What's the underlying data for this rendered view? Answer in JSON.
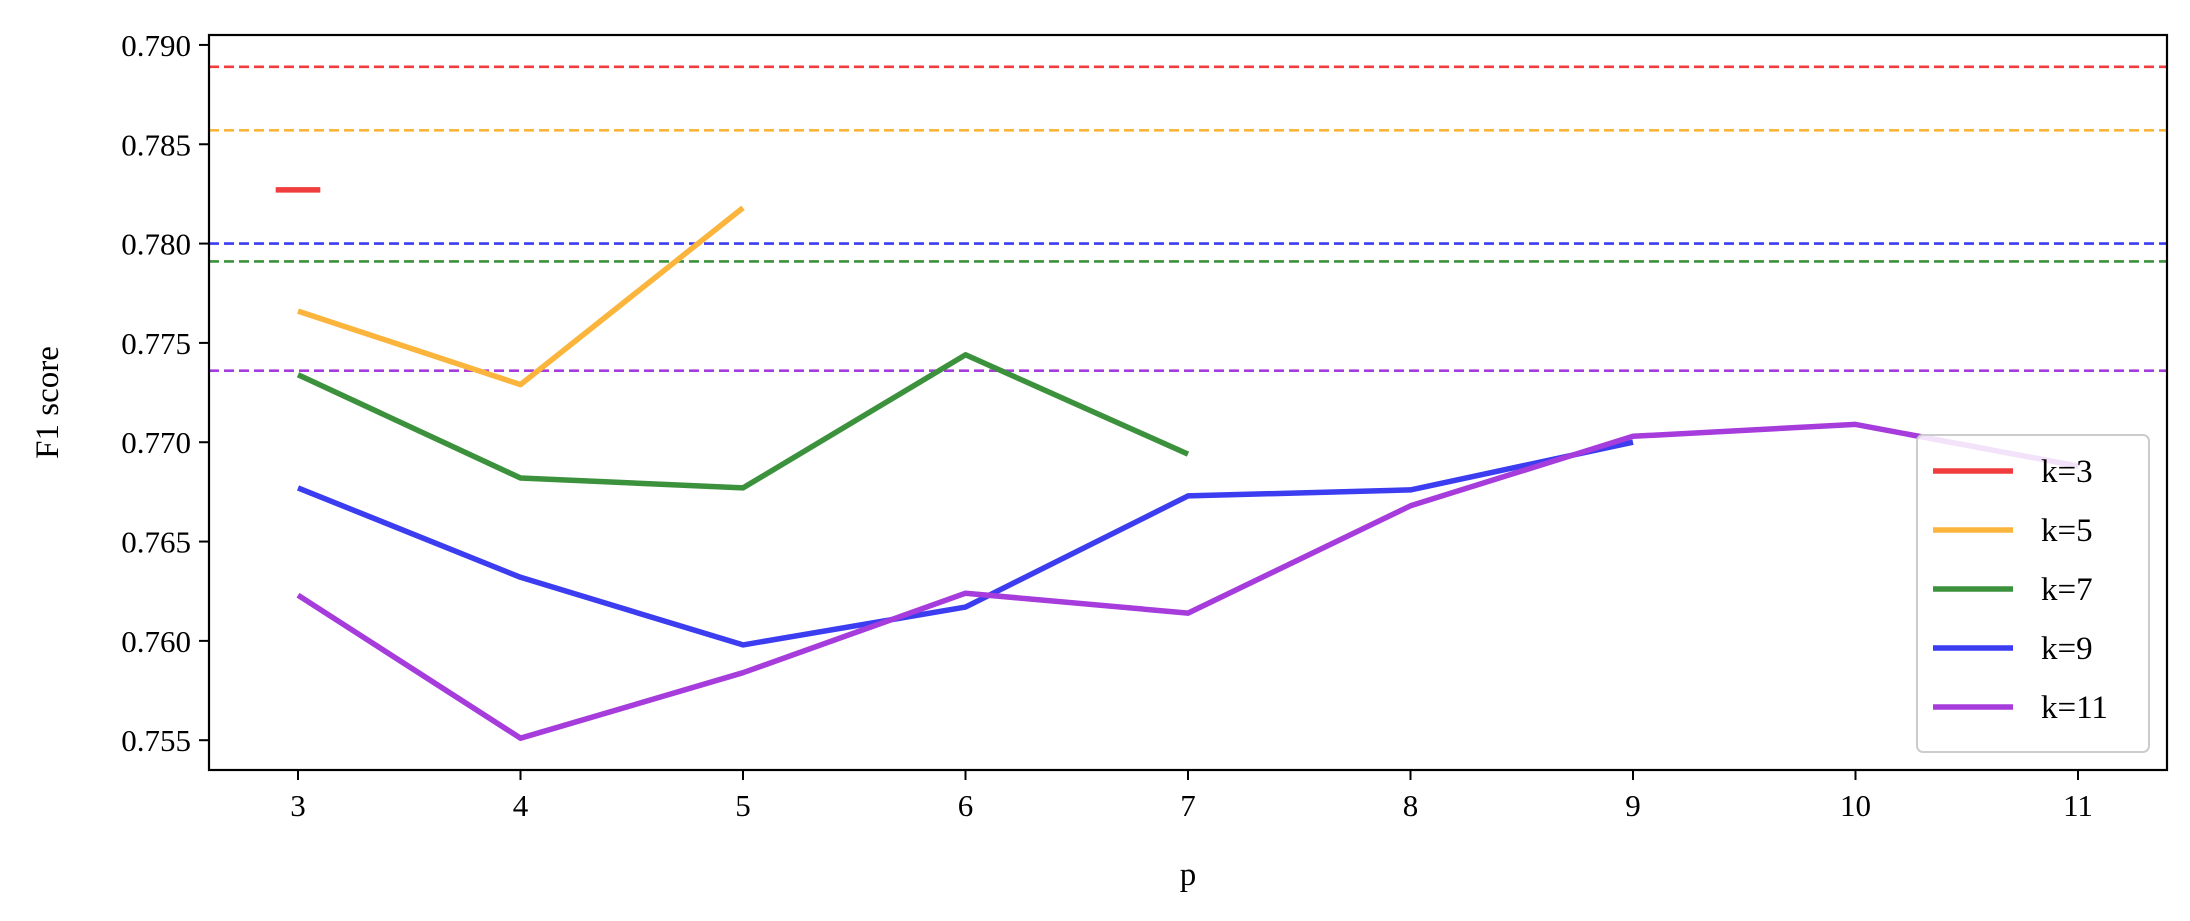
{
  "chart_data": {
    "type": "line",
    "title": "",
    "xlabel": "p",
    "ylabel": "F1 score",
    "xlim": [
      2.6,
      11.4
    ],
    "ylim": [
      0.7535,
      0.7905
    ],
    "xticks": [
      3,
      4,
      5,
      6,
      7,
      8,
      9,
      10,
      11
    ],
    "yticks": [
      0.755,
      0.76,
      0.765,
      0.77,
      0.775,
      0.78,
      0.785,
      0.79
    ],
    "ytick_labels": [
      "0.755",
      "0.760",
      "0.765",
      "0.770",
      "0.775",
      "0.780",
      "0.785",
      "0.790"
    ],
    "grid": false,
    "legend_position": "bottom-right",
    "series": [
      {
        "name": "k=3",
        "color": "#f03c3c",
        "x": [
          2.9,
          3.1
        ],
        "values": [
          0.7827,
          0.7827
        ],
        "reference": 0.7889
      },
      {
        "name": "k=5",
        "color": "#fbb43c",
        "x": [
          3,
          4,
          5
        ],
        "values": [
          0.7766,
          0.7729,
          0.7818
        ],
        "reference": 0.7857
      },
      {
        "name": "k=7",
        "color": "#3c913c",
        "x": [
          3,
          4,
          5,
          6,
          7
        ],
        "values": [
          0.7734,
          0.7682,
          0.7677,
          0.7744,
          0.7694
        ],
        "reference": 0.7791
      },
      {
        "name": "k=9",
        "color": "#3c3cf0",
        "x": [
          3,
          4,
          5,
          6,
          7,
          8,
          9
        ],
        "values": [
          0.7677,
          0.7632,
          0.7598,
          0.7617,
          0.7673,
          0.7676,
          0.77
        ],
        "reference": 0.78
      },
      {
        "name": "k=11",
        "color": "#a63cdb",
        "x": [
          3,
          4,
          5,
          6,
          7,
          8,
          9,
          10,
          11
        ],
        "values": [
          0.7623,
          0.7551,
          0.7584,
          0.7624,
          0.7614,
          0.7668,
          0.7703,
          0.7709,
          0.7688
        ],
        "reference": 0.7736
      }
    ]
  }
}
